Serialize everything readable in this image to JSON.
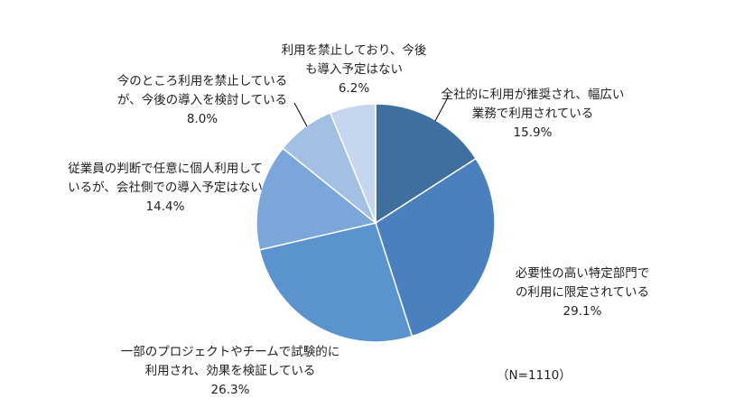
{
  "chart_data": {
    "type": "pie",
    "note": "（N=1110）",
    "slices": [
      {
        "lines": [
          "全社的に利用が推奨され、幅広い",
          "業務で利用されている"
        ],
        "value": 15.9,
        "value_label": "15.9%",
        "color": "#3f6f9f"
      },
      {
        "lines": [
          "必要性の高い特定部門で",
          "の利用に限定されている"
        ],
        "value": 29.1,
        "value_label": "29.1%",
        "color": "#4a80bd"
      },
      {
        "lines": [
          "一部のプロジェクトやチームで試験的に",
          "利用され、効果を検証している"
        ],
        "value": 26.3,
        "value_label": "26.3%",
        "color": "#5b93cf"
      },
      {
        "lines": [
          "従業員の判断で任意に個人利用して",
          "いるが、会社側での導入予定はない"
        ],
        "value": 14.4,
        "value_label": "14.4%",
        "color": "#7ba6da"
      },
      {
        "lines": [
          "今のところ利用を禁止している",
          "が、今後の導入を検討している"
        ],
        "value": 8.0,
        "value_label": "8.0%",
        "color": "#a3c0e4"
      },
      {
        "lines": [
          "利用を禁止しており、今後",
          "も導入予定はない"
        ],
        "value": 6.2,
        "value_label": "6.2%",
        "color": "#c5d6ee"
      }
    ]
  }
}
